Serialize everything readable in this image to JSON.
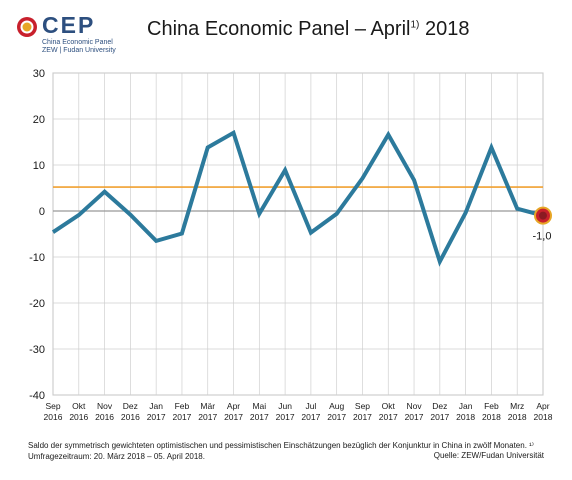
{
  "logo": {
    "word": "CEP",
    "line1": "China Economic Panel",
    "line2": "ZEW | Fudan University",
    "colors": {
      "ring": "#c8202c",
      "center": "#e7a626",
      "text": "#2d4f7f"
    }
  },
  "title": {
    "main": "China Economic Panel – April",
    "sup": "1)",
    "tail": " 2018"
  },
  "chart_data": {
    "type": "line",
    "title": "China Economic Panel – April 1) 2018",
    "xlabel": "",
    "ylabel": "",
    "ylim": [
      -40,
      30
    ],
    "yticks": [
      30,
      20,
      10,
      0,
      -10,
      -20,
      -30,
      -40
    ],
    "grid": true,
    "categories": [
      [
        "Sep",
        "2016"
      ],
      [
        "Okt",
        "2016"
      ],
      [
        "Nov",
        "2016"
      ],
      [
        "Dez",
        "2016"
      ],
      [
        "Jan",
        "2017"
      ],
      [
        "Feb",
        "2017"
      ],
      [
        "Mär",
        "2017"
      ],
      [
        "Apr",
        "2017"
      ],
      [
        "Mai",
        "2017"
      ],
      [
        "Jun",
        "2017"
      ],
      [
        "Jul",
        "2017"
      ],
      [
        "Aug",
        "2017"
      ],
      [
        "Sep",
        "2017"
      ],
      [
        "Okt",
        "2017"
      ],
      [
        "Nov",
        "2017"
      ],
      [
        "Dez",
        "2017"
      ],
      [
        "Jan",
        "2018"
      ],
      [
        "Feb",
        "2018"
      ],
      [
        "Mrz",
        "2018"
      ],
      [
        "Apr",
        "2018"
      ]
    ],
    "series": [
      {
        "name": "",
        "color": "#2c7a9c",
        "values": [
          -4.6,
          -0.9,
          4.2,
          -0.8,
          -6.5,
          -4.9,
          13.8,
          17.0,
          -0.6,
          8.9,
          -4.7,
          -0.6,
          7.1,
          16.6,
          6.7,
          -11.0,
          -0.4,
          13.8,
          0.5,
          -1.0
        ]
      }
    ],
    "reference_lines": [
      {
        "value": 5.2,
        "color": "#f0a030"
      },
      {
        "value": 0,
        "color": "#999999"
      }
    ],
    "annotations": [
      {
        "text": "-1,0",
        "category_index": 19,
        "value": -1.0
      }
    ]
  },
  "footnote": {
    "text": "Saldo der symmetrisch gewichteten optimistischen und pessimistischen Einschätzungen bezüglich der Konjunktur in China in zwölf Monaten. ¹⁾ Umfragezeitraum: 20. März 2018 – 05. April 2018."
  },
  "source": "Quelle: ZEW/Fudan Universität"
}
